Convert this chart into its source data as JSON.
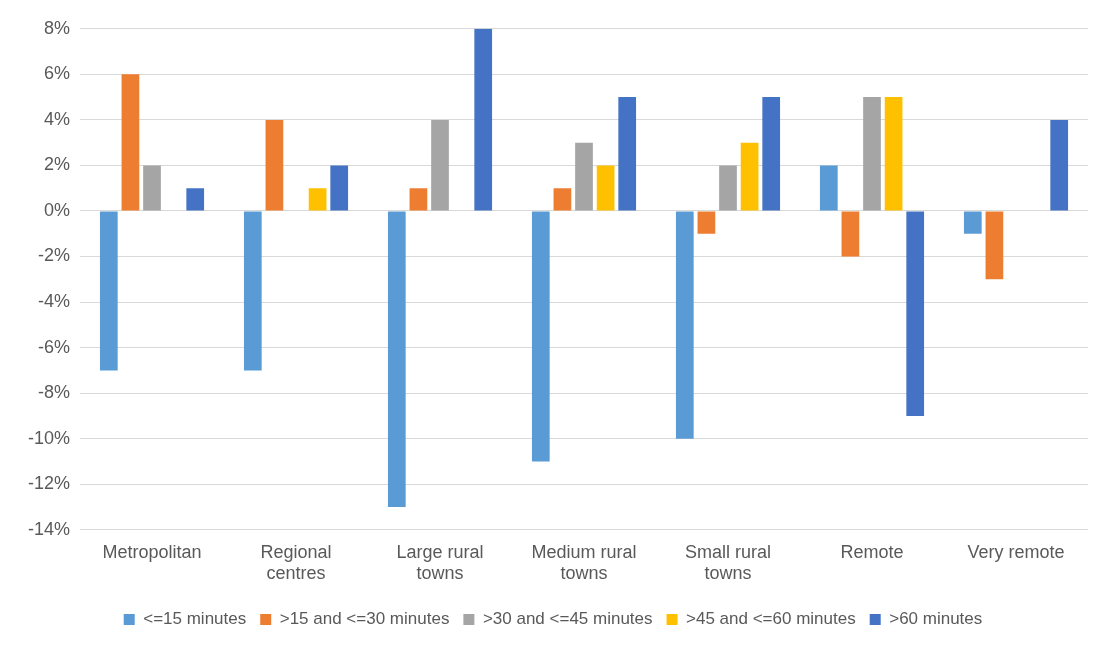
{
  "chart_data": {
    "type": "bar",
    "categories": [
      "Metropolitan",
      "Regional centres",
      "Large rural towns",
      "Medium rural towns",
      "Small rural towns",
      "Remote",
      "Very remote"
    ],
    "series": [
      {
        "name": "<=15 minutes",
        "color": "#5b9bd5",
        "values": [
          -7,
          -7,
          -13,
          -11,
          -10,
          2,
          -1
        ]
      },
      {
        "name": ">15 and <=30 minutes",
        "color": "#ed7d31",
        "values": [
          6,
          4,
          1,
          1,
          -1,
          -2,
          -3
        ]
      },
      {
        "name": ">30 and <=45 minutes",
        "color": "#a5a5a5",
        "values": [
          2,
          0,
          4,
          3,
          2,
          5,
          0
        ]
      },
      {
        "name": ">45 and <=60 minutes",
        "color": "#ffc000",
        "values": [
          0,
          1,
          0,
          2,
          3,
          5,
          0
        ]
      },
      {
        "name": ">60 minutes",
        "color": "#4472c4",
        "values": [
          1,
          2,
          8,
          5,
          5,
          -9,
          4
        ]
      }
    ],
    "ylim": [
      -14,
      8
    ],
    "yticks": [
      {
        "value": -14,
        "label": "-14%"
      },
      {
        "value": -12,
        "label": "-12%"
      },
      {
        "value": -10,
        "label": "-10%"
      },
      {
        "value": -8,
        "label": "-8%"
      },
      {
        "value": -6,
        "label": "-6%"
      },
      {
        "value": -4,
        "label": "-4%"
      },
      {
        "value": -2,
        "label": "-2%"
      },
      {
        "value": 0,
        "label": "0%"
      },
      {
        "value": 2,
        "label": "2%"
      },
      {
        "value": 4,
        "label": "4%"
      },
      {
        "value": 6,
        "label": "6%"
      },
      {
        "value": 8,
        "label": "8%"
      }
    ],
    "grid": "y",
    "legend": "bottom"
  }
}
